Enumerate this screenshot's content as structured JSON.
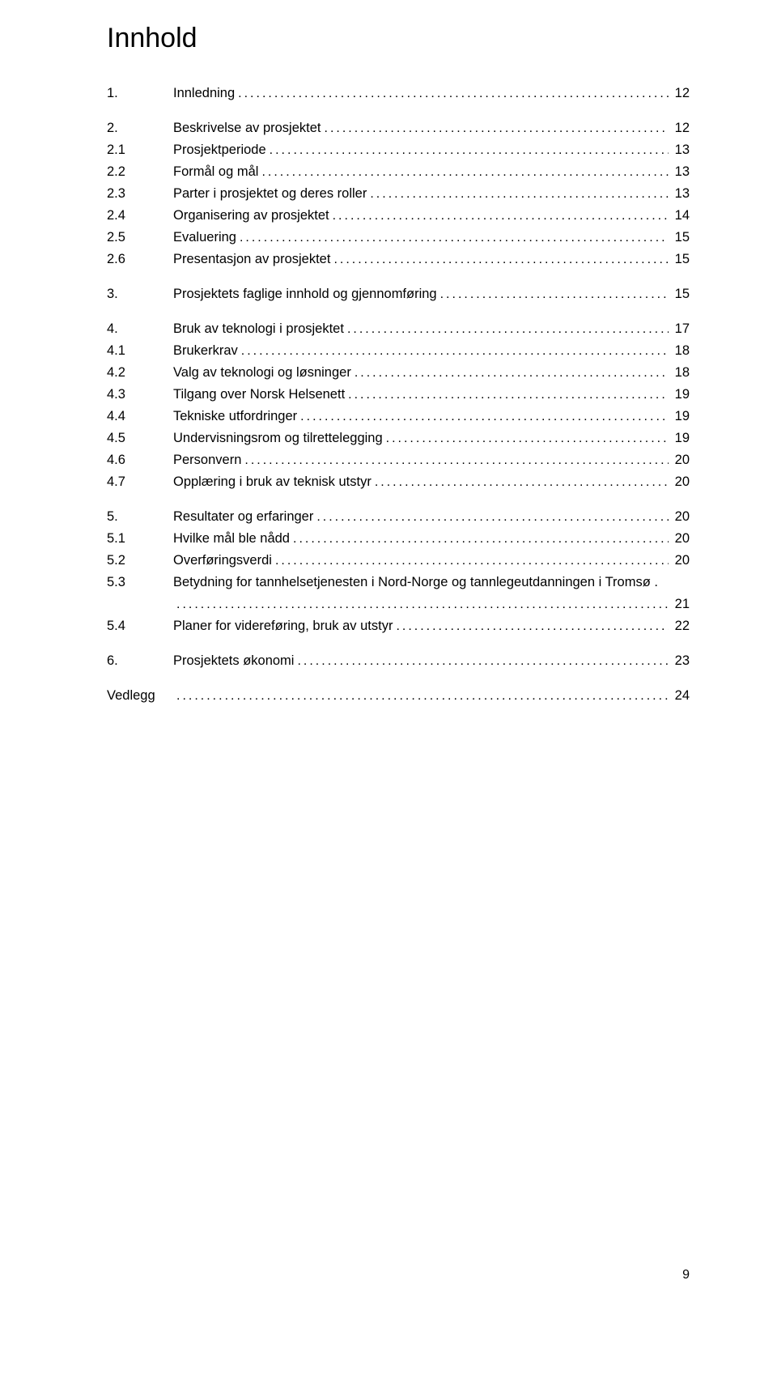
{
  "title": "Innhold",
  "page_number": "9",
  "groups": [
    {
      "rows": [
        {
          "num": "1.",
          "label": "Innledning",
          "page": "12"
        }
      ]
    },
    {
      "rows": [
        {
          "num": "2.",
          "label": "Beskrivelse av prosjektet",
          "page": "12"
        },
        {
          "num": "2.1",
          "label": "Prosjektperiode",
          "page": "13"
        },
        {
          "num": "2.2",
          "label": "Formål og mål",
          "page": "13"
        },
        {
          "num": "2.3",
          "label": "Parter i prosjektet og deres roller",
          "page": "13"
        },
        {
          "num": "2.4",
          "label": "Organisering av prosjektet",
          "page": "14"
        },
        {
          "num": "2.5",
          "label": "Evaluering",
          "page": "15"
        },
        {
          "num": "2.6",
          "label": "Presentasjon av prosjektet",
          "page": "15"
        }
      ]
    },
    {
      "rows": [
        {
          "num": "3.",
          "label": "Prosjektets faglige innhold og gjennomføring",
          "page": "15"
        }
      ]
    },
    {
      "rows": [
        {
          "num": "4.",
          "label": "Bruk av teknologi i prosjektet",
          "page": "17"
        },
        {
          "num": "4.1",
          "label": "Brukerkrav",
          "page": "18"
        },
        {
          "num": "4.2",
          "label": "Valg av teknologi og løsninger",
          "page": "18"
        },
        {
          "num": "4.3",
          "label": "Tilgang over Norsk Helsenett",
          "page": "19"
        },
        {
          "num": "4.4",
          "label": "Tekniske utfordringer",
          "page": "19"
        },
        {
          "num": "4.5",
          "label": "Undervisningsrom og tilrettelegging",
          "page": "19"
        },
        {
          "num": "4.6",
          "label": "Personvern",
          "page": "20"
        },
        {
          "num": "4.7",
          "label": "Opplæring i bruk av teknisk utstyr",
          "page": "20"
        }
      ]
    },
    {
      "rows": [
        {
          "num": "5.",
          "label": "Resultater og erfaringer",
          "page": "20"
        },
        {
          "num": "5.1",
          "label": "Hvilke mål ble nådd",
          "page": "20"
        },
        {
          "num": "5.2",
          "label": "Overføringsverdi",
          "page": "20"
        },
        {
          "num": "5.3",
          "label": "Betydning for tannhelsetjenesten i Nord-Norge og tannlegeutdanningen i Tromsø .",
          "page": "",
          "no_leader": true
        },
        {
          "num": "",
          "label": "",
          "page": "21",
          "continuation": true
        },
        {
          "num": "5.4",
          "label": "Planer for videreføring, bruk av utstyr",
          "page": "22"
        }
      ]
    },
    {
      "rows": [
        {
          "num": "6.",
          "label": "Prosjektets økonomi",
          "page": "23"
        }
      ]
    },
    {
      "rows": [
        {
          "num": "Vedlegg",
          "label": "",
          "page": "24",
          "vedlegg": true
        }
      ]
    }
  ]
}
